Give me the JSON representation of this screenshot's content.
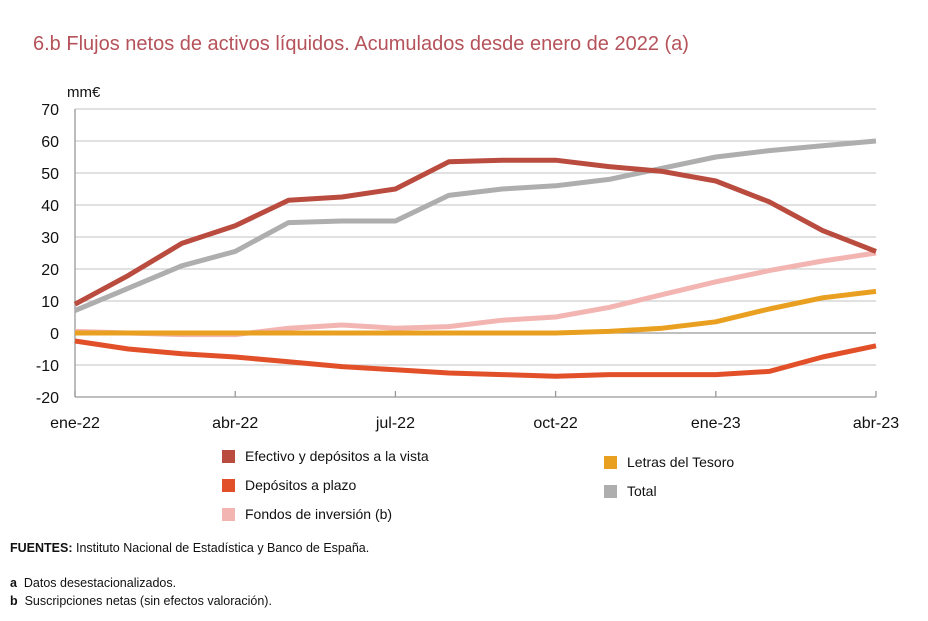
{
  "chart_data": {
    "type": "line",
    "title": "6.b  Flujos netos de activos líquidos. Acumulados desde enero de 2022 (a)",
    "ylabel": "mm€",
    "xlabel": "",
    "ylim": [
      -20,
      70
    ],
    "yticks": [
      "70",
      "60",
      "50",
      "40",
      "30",
      "20",
      "10",
      "0",
      "-10",
      "-20"
    ],
    "x": [
      "ene-22",
      "feb-22",
      "mar-22",
      "abr-22",
      "may-22",
      "jun-22",
      "jul-22",
      "ago-22",
      "sep-22",
      "oct-22",
      "nov-22",
      "dic-22",
      "ene-23",
      "feb-23",
      "mar-23",
      "abr-23"
    ],
    "xtick_labels": [
      {
        "index": 0,
        "label": "ene-22"
      },
      {
        "index": 3,
        "label": "abr-22"
      },
      {
        "index": 6,
        "label": "jul-22"
      },
      {
        "index": 9,
        "label": "oct-22"
      },
      {
        "index": 12,
        "label": "ene-23"
      },
      {
        "index": 15,
        "label": "abr-23"
      }
    ],
    "grid": true,
    "legend_placement": "bottom",
    "series": [
      {
        "name": "Efectivo y depósitos a la vista",
        "color": "#b94b3f",
        "values": [
          9,
          18,
          28,
          33.5,
          41.5,
          42.5,
          45,
          53.5,
          54,
          54,
          52,
          50.5,
          47.5,
          41,
          32,
          25.5
        ]
      },
      {
        "name": "Depósitos a plazo",
        "color": "#e2502a",
        "values": [
          -2.5,
          -5,
          -6.5,
          -7.5,
          -9,
          -10.5,
          -11.5,
          -12.5,
          -13,
          -13.5,
          -13,
          -13,
          -13,
          -12,
          -7.5,
          -4
        ]
      },
      {
        "name": "Fondos de inversión (b)",
        "color": "#f2b5b2",
        "values": [
          0.5,
          0,
          -0.5,
          -0.5,
          1.5,
          2.5,
          1.5,
          2,
          4,
          5,
          8,
          12,
          16,
          19.5,
          22.5,
          25
        ]
      },
      {
        "name": "Letras del Tesoro",
        "color": "#e9a020",
        "values": [
          0,
          0,
          0,
          0,
          0,
          0,
          0,
          0,
          0,
          0,
          0.5,
          1.5,
          3.5,
          7.5,
          11,
          13
        ]
      },
      {
        "name": "Total",
        "color": "#aeaeae",
        "values": [
          7,
          14,
          21,
          25.5,
          34.5,
          35,
          35,
          43,
          45,
          46,
          48,
          51.5,
          55,
          57,
          58.5,
          60
        ]
      }
    ]
  },
  "notes": {
    "sources_label": "FUENTES:",
    "sources_text": " Instituto Nacional de Estadística y Banco de España.",
    "a_label": "a",
    "a_text": "Datos desestacionalizados.",
    "b_label": "b",
    "b_text": "Suscripciones netas (sin efectos valoración)."
  }
}
